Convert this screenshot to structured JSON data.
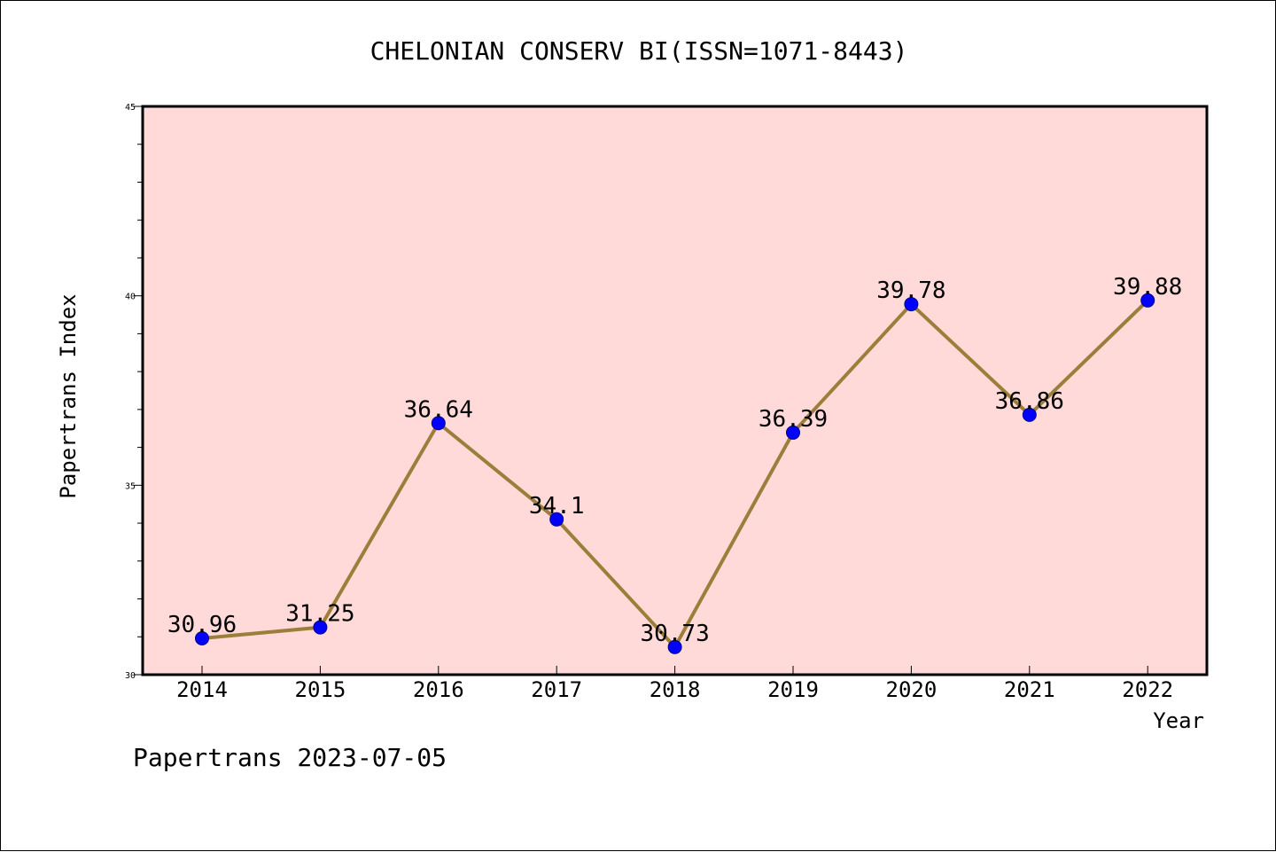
{
  "chart_data": {
    "type": "line",
    "title": "CHELONIAN CONSERV BI(ISSN=1071-8443)",
    "xlabel": "Year",
    "ylabel": "Papertrans Index",
    "categories": [
      "2014",
      "2015",
      "2016",
      "2017",
      "2018",
      "2019",
      "2020",
      "2021",
      "2022"
    ],
    "values": [
      30.96,
      31.25,
      36.64,
      34.1,
      30.73,
      36.39,
      39.78,
      36.86,
      39.88
    ],
    "data_labels": [
      "30.96",
      "31.25",
      "36.64",
      "34.1",
      "30.73",
      "36.39",
      "39.78",
      "36.86",
      "39.88"
    ],
    "ylim": [
      30,
      45
    ],
    "y_ticks": [
      30,
      35,
      40,
      45
    ],
    "y_minor_step": 1,
    "grid": false,
    "colors": {
      "plot_background": "#FFDAD9",
      "line": "#9C7E3A",
      "marker": "#0000FF"
    }
  },
  "footer": {
    "text": "Papertrans 2023-07-05"
  }
}
